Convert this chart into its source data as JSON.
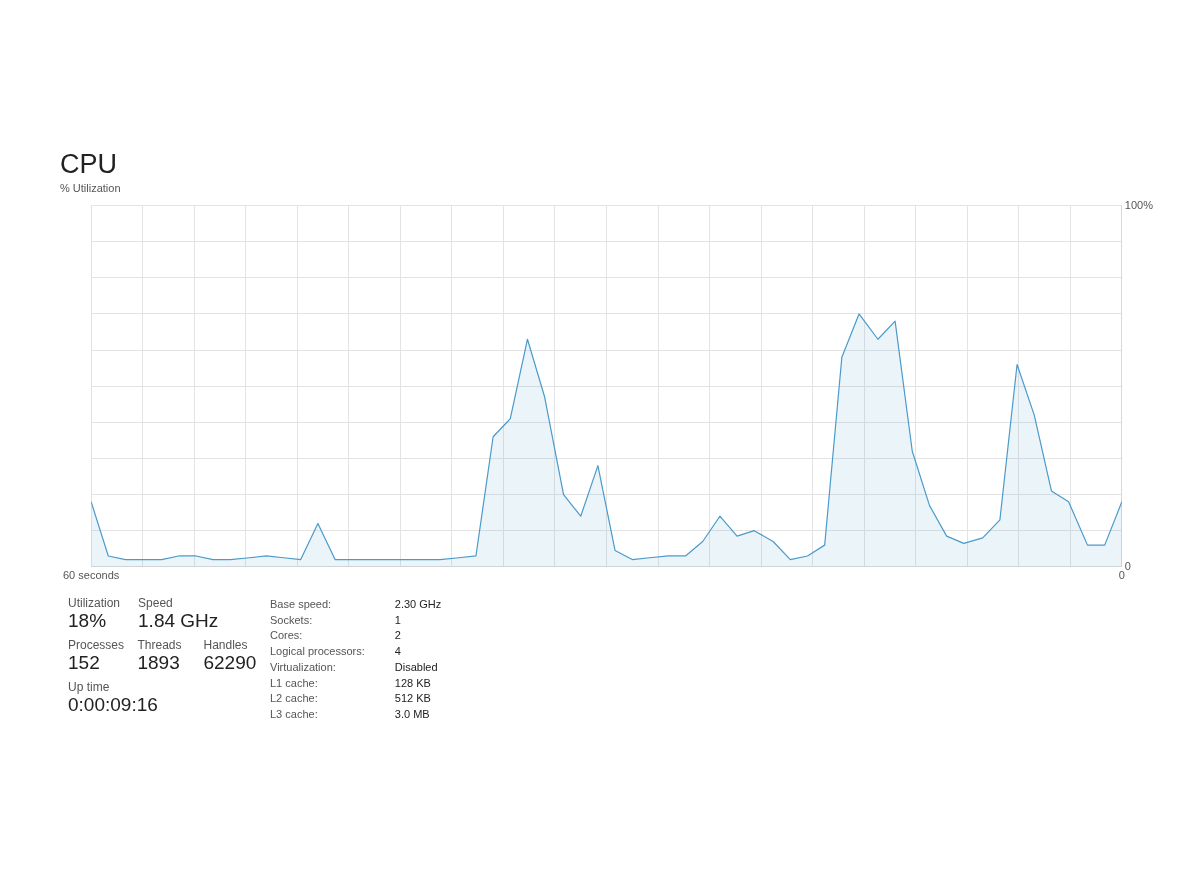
{
  "chart_data": {
    "type": "area",
    "title": "CPU",
    "ylabel": "% Utilization",
    "color": "#4a9acb",
    "x": [
      60.0,
      59.0,
      58.0,
      56.9,
      55.9,
      54.9,
      53.9,
      52.9,
      51.9,
      50.8,
      49.8,
      48.8,
      47.8,
      46.8,
      45.8,
      44.7,
      43.7,
      42.7,
      41.7,
      40.7,
      39.7,
      38.6,
      37.6,
      36.6,
      35.6,
      34.6,
      33.6,
      32.5,
      31.5,
      30.5,
      29.5,
      28.5,
      27.5,
      26.4,
      25.4,
      24.4,
      23.4,
      22.4,
      21.4,
      20.3,
      19.3,
      18.3,
      17.3,
      16.3,
      15.3,
      14.2,
      13.2,
      12.2,
      11.2,
      10.2,
      9.2,
      8.1,
      7.1,
      6.1,
      5.1,
      4.1,
      3.1,
      2.0,
      1.0,
      0.0
    ],
    "values": [
      18,
      3,
      2,
      2,
      2,
      3,
      3,
      2,
      2,
      2.5,
      3,
      2.5,
      2,
      12,
      2,
      2,
      2,
      2,
      2,
      2,
      2,
      2.5,
      3,
      36,
      41,
      63,
      47,
      20,
      14,
      28,
      4.5,
      2,
      2.5,
      3,
      3,
      7,
      14,
      8.5,
      10,
      7,
      2,
      3,
      6,
      58,
      70,
      63,
      68,
      32,
      17,
      8.5,
      6.5,
      8,
      13,
      56,
      42,
      21,
      18,
      6,
      6,
      18
    ],
    "xlim": [
      60,
      0
    ],
    "xticks": [
      {
        "value": 60,
        "label": "60 seconds"
      },
      {
        "value": 57,
        "label": null
      },
      {
        "value": 54,
        "label": null
      },
      {
        "value": 51,
        "label": null
      },
      {
        "value": 48,
        "label": null
      },
      {
        "value": 45,
        "label": null
      },
      {
        "value": 42,
        "label": null
      },
      {
        "value": 39,
        "label": null
      },
      {
        "value": 36,
        "label": null
      },
      {
        "value": 33,
        "label": null
      },
      {
        "value": 30,
        "label": null
      },
      {
        "value": 27,
        "label": null
      },
      {
        "value": 24,
        "label": null
      },
      {
        "value": 21,
        "label": null
      },
      {
        "value": 18,
        "label": null
      },
      {
        "value": 15,
        "label": null
      },
      {
        "value": 12,
        "label": null
      },
      {
        "value": 9,
        "label": null
      },
      {
        "value": 6,
        "label": null
      },
      {
        "value": 3,
        "label": null
      },
      {
        "value": 0,
        "label": "0"
      }
    ],
    "ylim": [
      0,
      100
    ],
    "yticks": [
      {
        "value": 0,
        "label": "0"
      },
      {
        "value": 10,
        "label": null
      },
      {
        "value": 20,
        "label": null
      },
      {
        "value": 30,
        "label": null
      },
      {
        "value": 40,
        "label": null
      },
      {
        "value": 50,
        "label": null
      },
      {
        "value": 60,
        "label": null
      },
      {
        "value": 70,
        "label": null
      },
      {
        "value": 80,
        "label": null
      },
      {
        "value": 90,
        "label": null
      },
      {
        "value": 100,
        "label": "100%"
      }
    ],
    "grid": true,
    "annotations": [
      "Utilization",
      "18%",
      "Speed",
      "1.84 GHz",
      "Processes",
      "152",
      "Threads",
      "1893",
      "Handles",
      "62290",
      "Up time",
      "0:00:09:16",
      "Base speed:",
      "2.30 GHz",
      "Sockets:",
      "1",
      "Cores:",
      "2",
      "Logical processors:",
      "4",
      "Virtualization:",
      "Disabled",
      "L1 cache:",
      "128 KB",
      "L2 cache:",
      "512 KB",
      "L3 cache:",
      "3.0 MB"
    ]
  }
}
